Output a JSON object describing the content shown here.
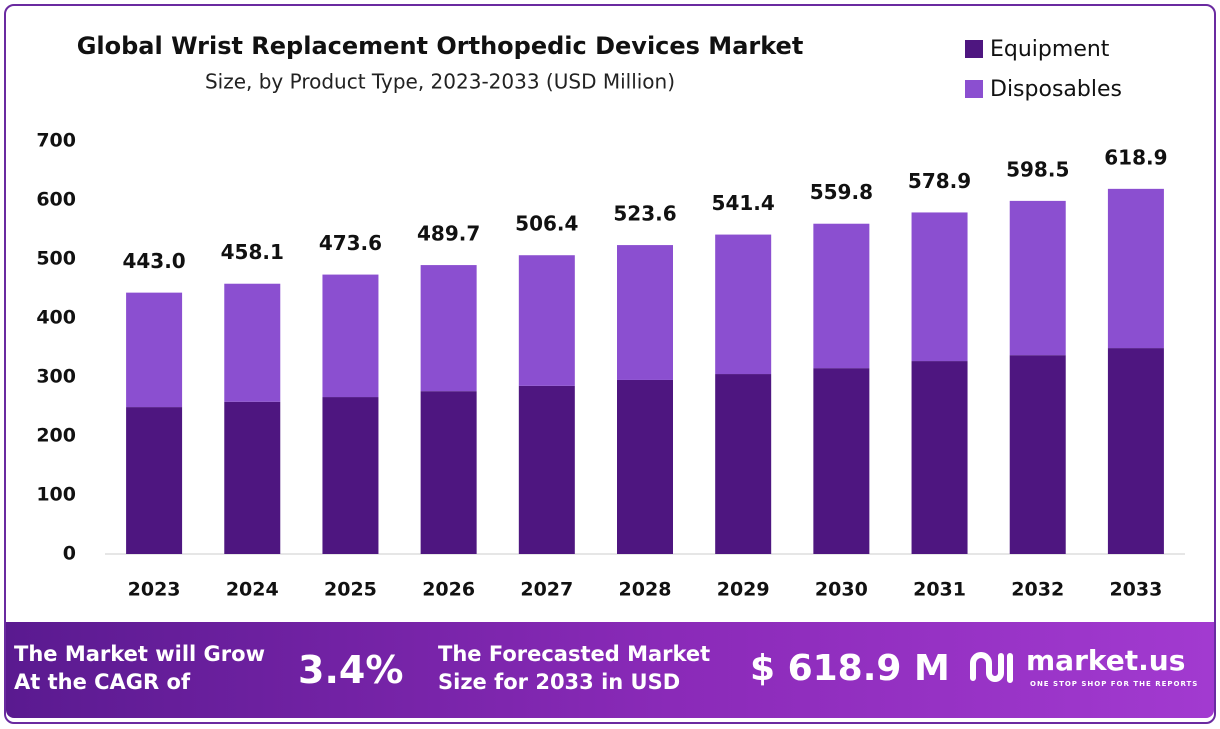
{
  "chart_data": {
    "type": "stacked-bar",
    "title": "Global Wrist Replacement Orthopedic Devices Market",
    "subtitle": "Size, by Product Type, 2023-2033 (USD Million)",
    "categories": [
      "2023",
      "2024",
      "2025",
      "2026",
      "2027",
      "2028",
      "2029",
      "2030",
      "2031",
      "2032",
      "2033"
    ],
    "series": [
      {
        "name": "Equipment",
        "color": "#4e1680",
        "values": [
          249,
          258,
          266,
          276,
          285,
          295,
          305,
          315,
          327,
          337,
          349
        ]
      },
      {
        "name": "Disposables",
        "color": "#8b4fd0",
        "values": [
          194,
          200.1,
          207.6,
          213.7,
          221.4,
          228.6,
          236.4,
          244.8,
          251.9,
          261.5,
          269.9
        ]
      }
    ],
    "totals": {
      "values": [
        443.0,
        458.1,
        473.6,
        489.7,
        506.4,
        523.6,
        541.4,
        559.8,
        578.9,
        598.5,
        618.9
      ],
      "value_labels": [
        "443.0",
        "458.1",
        "473.6",
        "489.7",
        "506.4",
        "523.6",
        "541.4",
        "559.8",
        "578.9",
        "598.5",
        "618.9"
      ]
    },
    "ylim": [
      0,
      700
    ],
    "yticks": [
      0,
      100,
      200,
      300,
      400,
      500,
      600,
      700
    ],
    "grid": false,
    "legend": "top-right"
  },
  "footer": {
    "cagr_text": "The Market will Grow At the CAGR of",
    "cagr": "3.4%",
    "forecast_text": "The Forecasted Market Size for 2033 in USD",
    "forecast": "$ 618.9 M",
    "brand": "market.us",
    "tagline": "ONE STOP SHOP FOR THE REPORTS"
  }
}
